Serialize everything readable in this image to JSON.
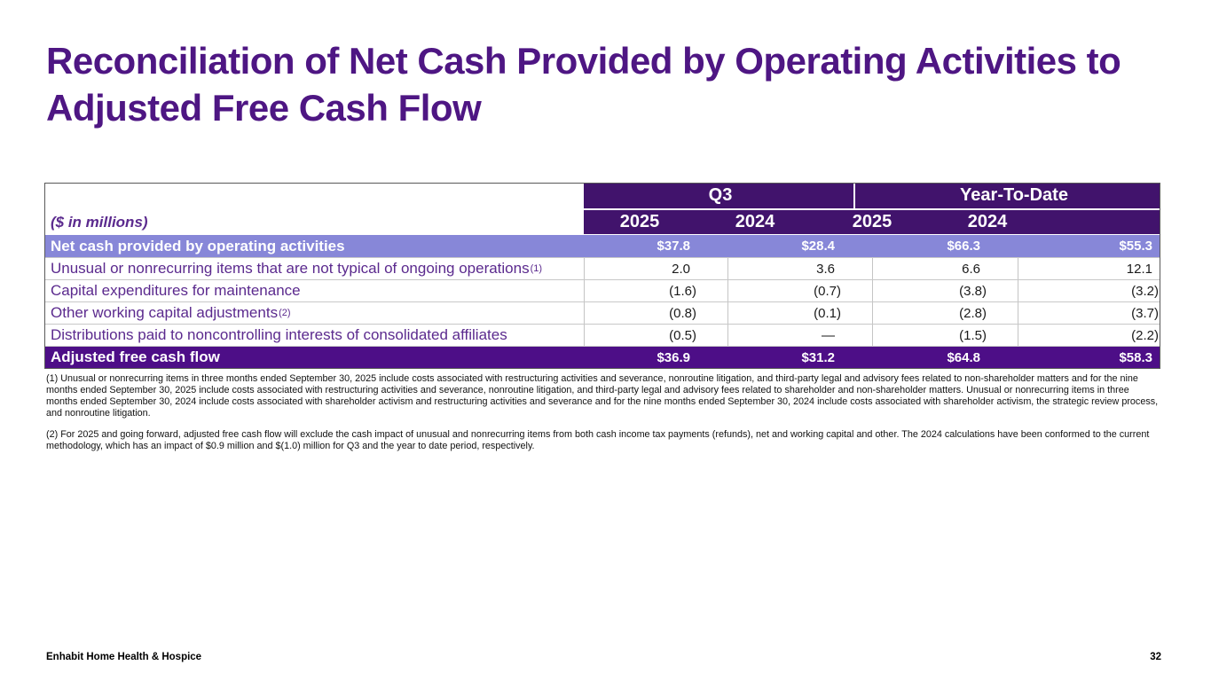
{
  "slide": {
    "title": "Reconciliation of Net Cash Provided by Operating Activities to Adjusted Free Cash Flow",
    "footer": {
      "company": "Enhabit Home Health & Hospice",
      "page_number": "32"
    }
  },
  "table": {
    "units_label": "($ in millions)",
    "column_groups": [
      {
        "label": "Q3"
      },
      {
        "label": "Year-To-Date"
      }
    ],
    "year_columns": [
      "2025",
      "2024",
      "2025",
      "2024"
    ],
    "rows": [
      {
        "label": "Net cash provided by operating activities",
        "sup": "",
        "style": "highlight",
        "values": [
          "$37.8",
          "$28.4",
          "$66.3",
          "$55.3"
        ]
      },
      {
        "label": "Unusual or nonrecurring items that are not typical of ongoing operations",
        "sup": "(1)",
        "style": "normal",
        "values": [
          "2.0",
          "3.6",
          "6.6",
          "12.1"
        ]
      },
      {
        "label": "Capital expenditures for maintenance",
        "sup": "",
        "style": "normal",
        "values": [
          "(1.6)",
          "(0.7)",
          "(3.8)",
          "(3.2)"
        ]
      },
      {
        "label": "Other working capital adjustments",
        "sup": "(2)",
        "style": "normal",
        "values": [
          "(0.8)",
          "(0.1)",
          "(2.8)",
          "(3.7)"
        ]
      },
      {
        "label": "Distributions paid to noncontrolling interests of consolidated affiliates",
        "sup": "",
        "style": "normal",
        "values": [
          "(0.5)",
          "—",
          "(1.5)",
          "(2.2)"
        ]
      },
      {
        "label": "Adjusted free cash flow",
        "sup": "",
        "style": "total",
        "values": [
          "$36.9",
          "$31.2",
          "$64.8",
          "$58.3"
        ]
      }
    ]
  },
  "footnotes": [
    "(1) Unusual or nonrecurring items in three months ended September 30, 2025 include costs associated with restructuring activities and severance, nonroutine litigation, and third-party legal and advisory fees related to non-shareholder matters and for the nine months ended September 30, 2025 include costs associated with restructuring activities and severance, nonroutine litigation, and third-party legal and advisory fees related to shareholder and non-shareholder matters. Unusual or nonrecurring items in three months ended September 30, 2024 include costs associated with shareholder activism and restructuring activities and severance and for the nine months ended September 30, 2024 include costs associated with shareholder activism, the strategic review process, and nonroutine litigation.",
    "(2) For 2025 and going forward, adjusted free cash flow will exclude the cash impact of unusual and nonrecurring items from both cash income tax payments (refunds), net and working capital and other. The 2024 calculations have been conformed to the current methodology, which has an impact of $0.9 million and $(1.0) million for Q3 and the year to date period, respectively."
  ],
  "colors": {
    "title": "#4E1683",
    "header_bg": "#41136C",
    "total_bg": "#4D0E87",
    "highlight_bg": "#8787D8",
    "label_text": "#5B2A8E"
  }
}
